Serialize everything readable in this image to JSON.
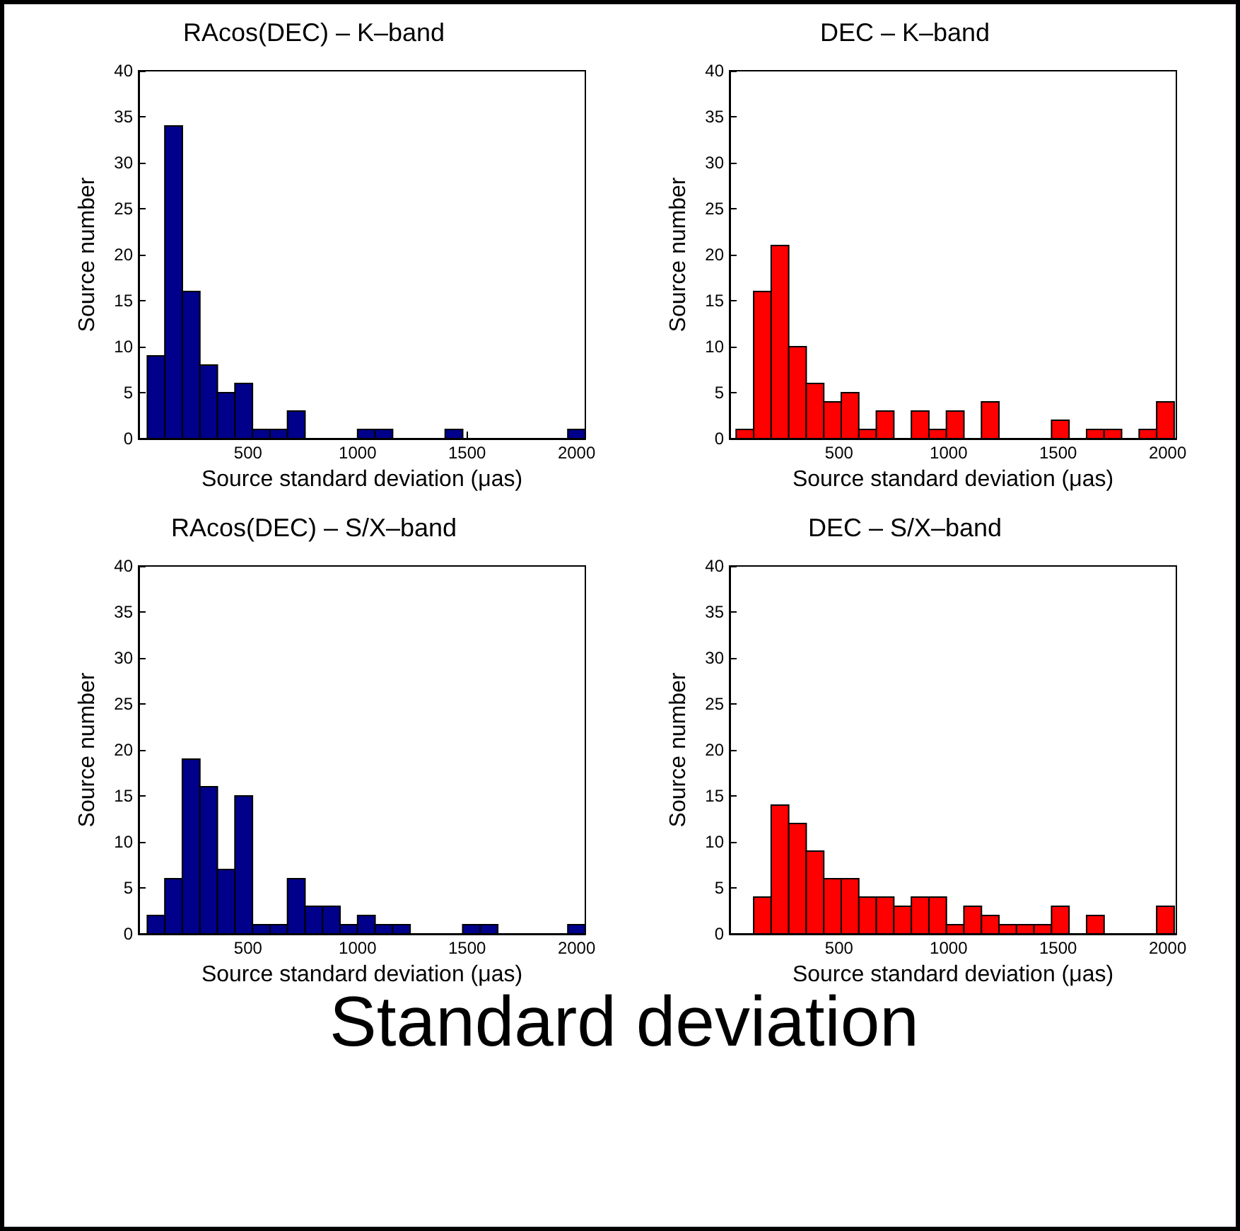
{
  "chart_data": [
    {
      "type": "histogram",
      "title": "RAcos(DEC) – K–band",
      "xlabel": "Source standard deviation (μas)",
      "ylabel": "Source number",
      "color": "#00008b",
      "bins": [
        40,
        120,
        200,
        280,
        360,
        440,
        520,
        600,
        680,
        760,
        840,
        920,
        1000,
        1080,
        1160,
        1240,
        1320,
        1400,
        1480,
        1560,
        1640,
        1720,
        1800,
        1880,
        1960,
        2040
      ],
      "values": [
        9,
        34,
        16,
        8,
        5,
        6,
        1,
        1,
        3,
        0,
        0,
        0,
        1,
        1,
        0,
        0,
        0,
        1,
        0,
        0,
        0,
        0,
        0,
        0,
        1
      ],
      "xlim": [
        0,
        2040
      ],
      "xticks": [
        500,
        1000,
        1500,
        2000
      ],
      "ylim": [
        0,
        40
      ],
      "yticks": [
        0,
        5,
        10,
        15,
        20,
        25,
        30,
        35,
        40
      ]
    },
    {
      "type": "histogram",
      "title": "DEC – K–band",
      "xlabel": "Source standard deviation (μas)",
      "ylabel": "Source number",
      "color": "#ff0000",
      "bins": [
        30,
        110,
        190,
        270,
        350,
        430,
        510,
        590,
        670,
        750,
        830,
        910,
        990,
        1070,
        1150,
        1230,
        1310,
        1390,
        1470,
        1550,
        1630,
        1710,
        1790,
        1870,
        1950,
        2030
      ],
      "values": [
        1,
        16,
        21,
        10,
        6,
        4,
        5,
        1,
        3,
        0,
        3,
        1,
        3,
        0,
        4,
        0,
        0,
        0,
        2,
        0,
        1,
        1,
        0,
        1,
        4
      ],
      "xlim": [
        0,
        2040
      ],
      "xticks": [
        500,
        1000,
        1500,
        2000
      ],
      "ylim": [
        0,
        40
      ],
      "yticks": [
        0,
        5,
        10,
        15,
        20,
        25,
        30,
        35,
        40
      ]
    },
    {
      "type": "histogram",
      "title": "RAcos(DEC) – S/X–band",
      "xlabel": "Source standard deviation (μas)",
      "ylabel": "Source number",
      "color": "#00008b",
      "bins": [
        40,
        120,
        200,
        280,
        360,
        440,
        520,
        600,
        680,
        760,
        840,
        920,
        1000,
        1080,
        1160,
        1240,
        1320,
        1400,
        1480,
        1560,
        1640,
        1720,
        1800,
        1880,
        1960,
        2040
      ],
      "values": [
        2,
        6,
        19,
        16,
        7,
        15,
        1,
        1,
        6,
        3,
        3,
        1,
        2,
        1,
        1,
        0,
        0,
        0,
        1,
        1,
        0,
        0,
        0,
        0,
        1
      ],
      "xlim": [
        0,
        2040
      ],
      "xticks": [
        500,
        1000,
        1500,
        2000
      ],
      "ylim": [
        0,
        40
      ],
      "yticks": [
        0,
        5,
        10,
        15,
        20,
        25,
        30,
        35,
        40
      ]
    },
    {
      "type": "histogram",
      "title": "DEC – S/X–band",
      "xlabel": "Source standard deviation (μas)",
      "ylabel": "Source number",
      "color": "#ff0000",
      "bins": [
        30,
        110,
        190,
        270,
        350,
        430,
        510,
        590,
        670,
        750,
        830,
        910,
        990,
        1070,
        1150,
        1230,
        1310,
        1390,
        1470,
        1550,
        1630,
        1710,
        1790,
        1870,
        1950,
        2030
      ],
      "values": [
        0,
        4,
        14,
        12,
        9,
        6,
        6,
        4,
        4,
        3,
        4,
        4,
        1,
        3,
        2,
        1,
        1,
        1,
        3,
        0,
        2,
        0,
        0,
        0,
        3
      ],
      "xlim": [
        0,
        2040
      ],
      "xticks": [
        500,
        1000,
        1500,
        2000
      ],
      "ylim": [
        0,
        40
      ],
      "yticks": [
        0,
        5,
        10,
        15,
        20,
        25,
        30,
        35,
        40
      ]
    },
    {
      "type": "other",
      "title": "Standard deviation"
    }
  ]
}
